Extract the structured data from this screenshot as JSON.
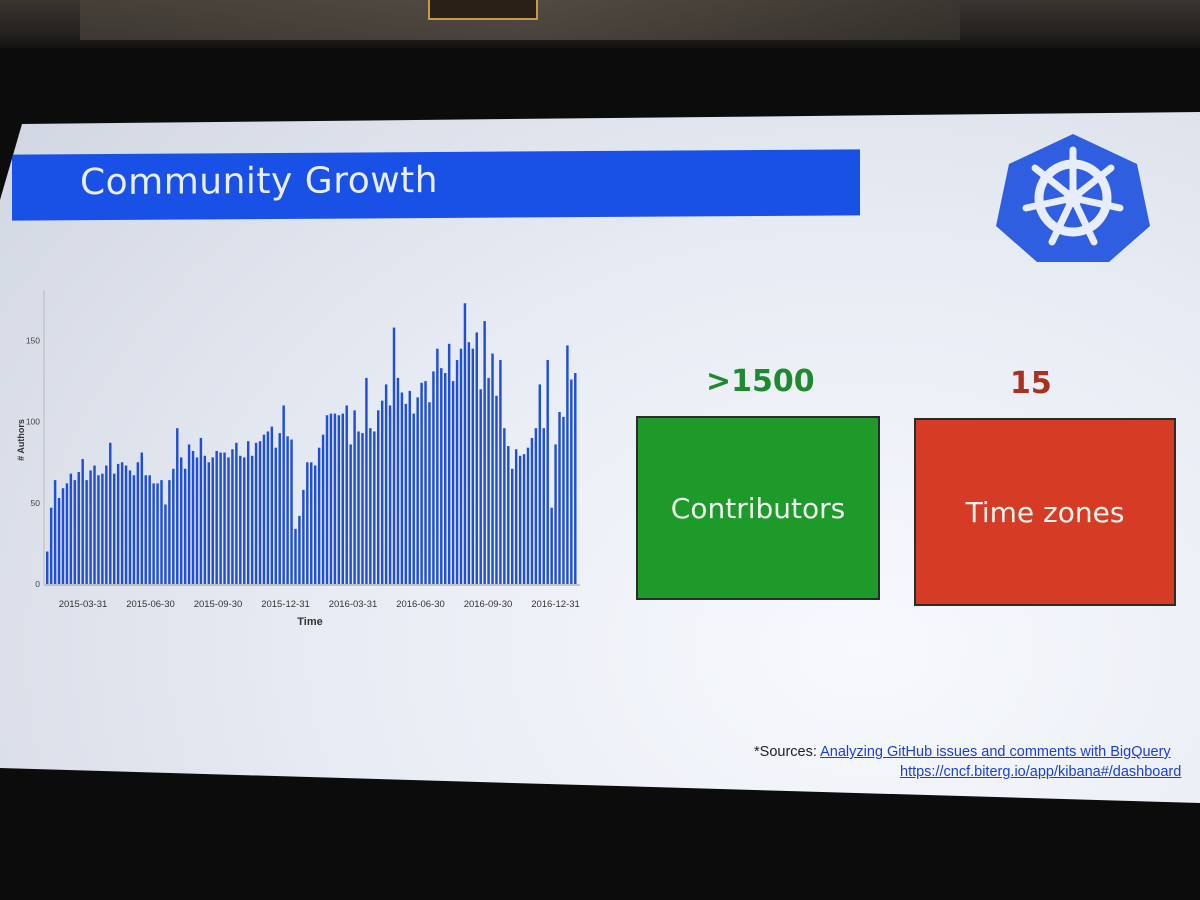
{
  "slide": {
    "title": "Community Growth",
    "logo_icon": "kubernetes-helm-wheel-icon"
  },
  "colors": {
    "title_bar": "#1950e6",
    "bar": "#1f4ed8",
    "contributors_value": "#1e8a2e",
    "contributors_card": "#1e9a2a",
    "timezones_value": "#a8321f",
    "timezones_card": "#d63c25",
    "logo": "#2f5fe0"
  },
  "stats": {
    "contributors": {
      "value": ">1500",
      "label": "Contributors"
    },
    "timezones": {
      "value": "15",
      "label": "Time zones"
    }
  },
  "sources": {
    "prefix": "*Sources:",
    "link1": "Analyzing GitHub issues and comments with BigQuery",
    "link2": "https://cncf.biterg.io/app/kibana#/dashboard"
  },
  "chart_data": {
    "type": "bar",
    "xlabel": "Time",
    "ylabel": "# Authors",
    "ylim": [
      0,
      175
    ],
    "yticks": [
      0,
      50,
      100,
      150
    ],
    "xtick_labels": [
      "2015-03-31",
      "2015-06-30",
      "2015-09-30",
      "2015-12-31",
      "2016-03-31",
      "2016-06-30",
      "2016-09-30",
      "2016-12-31"
    ],
    "grid": false,
    "values": [
      20,
      47,
      64,
      53,
      59,
      62,
      68,
      64,
      69,
      77,
      64,
      70,
      73,
      67,
      68,
      73,
      87,
      68,
      74,
      75,
      73,
      70,
      67,
      75,
      81,
      67,
      67,
      62,
      62,
      64,
      49,
      64,
      71,
      96,
      78,
      71,
      86,
      82,
      78,
      90,
      79,
      75,
      78,
      82,
      81,
      81,
      78,
      83,
      87,
      79,
      78,
      88,
      79,
      87,
      88,
      92,
      94,
      97,
      84,
      93,
      110,
      91,
      89,
      34,
      42,
      58,
      75,
      75,
      73,
      84,
      92,
      104,
      105,
      105,
      104,
      105,
      110,
      86,
      107,
      94,
      93,
      127,
      96,
      94,
      107,
      113,
      123,
      110,
      158,
      127,
      118,
      111,
      119,
      105,
      115,
      124,
      125,
      112,
      131,
      145,
      133,
      130,
      148,
      125,
      138,
      145,
      173,
      149,
      145,
      155,
      120,
      162,
      127,
      142,
      116,
      138,
      96,
      85,
      71,
      83,
      79,
      80,
      84,
      90,
      96,
      123,
      96,
      138,
      47,
      86,
      106,
      103,
      147,
      126,
      130
    ]
  }
}
